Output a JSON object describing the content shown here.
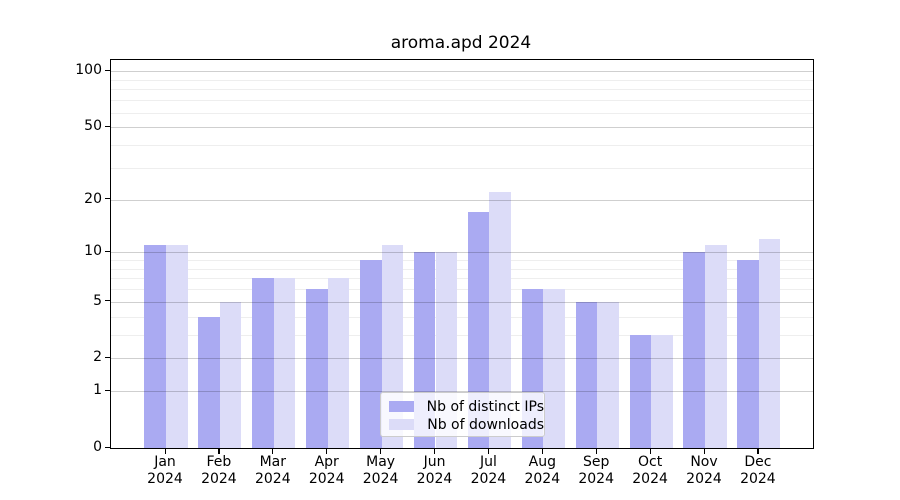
{
  "title": "aroma.apd 2024",
  "colors": {
    "ips": "#aaaaf2",
    "downloads": "#dcdcf8",
    "grid_major": "#cccccc",
    "grid_minor": "#ececec",
    "spine": "#000000"
  },
  "legend": {
    "items": [
      {
        "label": "Nb of distinct IPs",
        "series": "ips"
      },
      {
        "label": "Nb of downloads",
        "series": "downloads"
      }
    ]
  },
  "chart_data": {
    "type": "bar",
    "title": "aroma.apd 2024",
    "categories": [
      "Jan",
      "Feb",
      "Mar",
      "Apr",
      "May",
      "Jun",
      "Jul",
      "Aug",
      "Sep",
      "Oct",
      "Nov",
      "Dec"
    ],
    "x_year": "2024",
    "series": [
      {
        "name": "Nb of distinct IPs",
        "color_key": "ips",
        "values": [
          11,
          4,
          7,
          6,
          9,
          10,
          17,
          6,
          5,
          3,
          10,
          9
        ]
      },
      {
        "name": "Nb of downloads",
        "color_key": "downloads",
        "values": [
          11,
          5,
          7,
          7,
          11,
          10,
          22,
          6,
          5,
          3,
          11,
          12
        ]
      }
    ],
    "xlabel": "",
    "ylabel": "",
    "yscale": "log1p",
    "ylim": [
      0,
      115
    ],
    "y_ticks": [
      0,
      1,
      2,
      5,
      10,
      20,
      50,
      100
    ],
    "y_minor_ticks": [
      3,
      4,
      6,
      7,
      8,
      9,
      30,
      40,
      60,
      70,
      80,
      90
    ],
    "grid": true,
    "legend_position": "lower center"
  }
}
